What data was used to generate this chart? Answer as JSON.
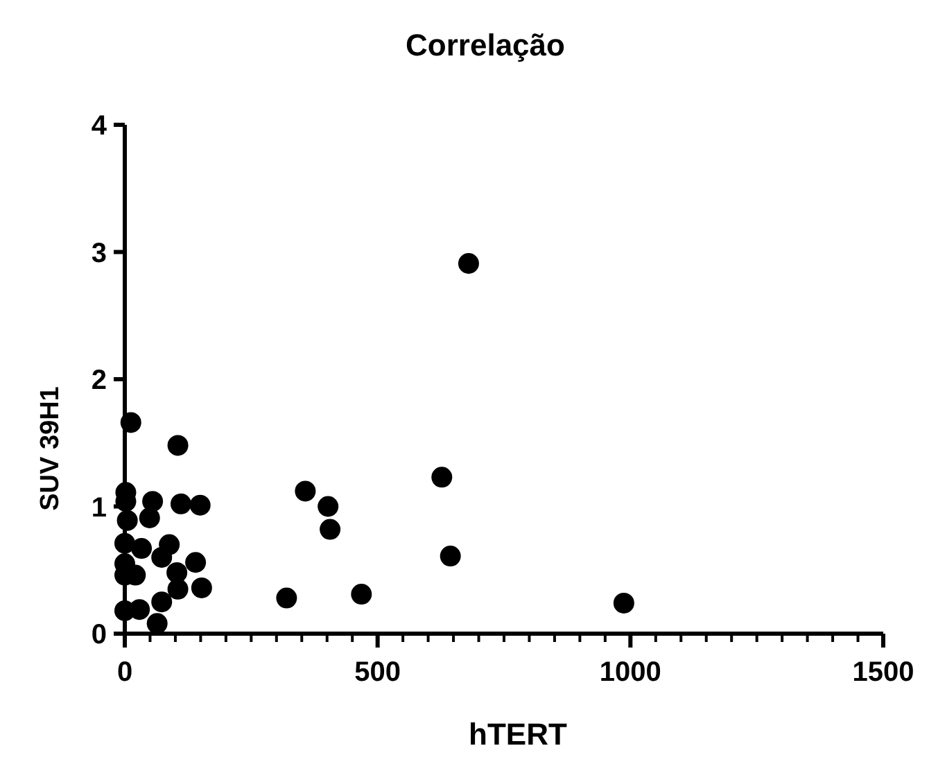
{
  "chart_data": {
    "type": "scatter",
    "title": "Correlação",
    "xlabel": "hTERT",
    "ylabel": "SUV 39H1",
    "marker": "circle",
    "grid": false,
    "xlim": [
      0,
      1500
    ],
    "ylim": [
      0,
      4
    ],
    "xticks": [
      0,
      {
        "value": 50,
        "label": null
      },
      {
        "value": 100,
        "label": null
      },
      {
        "value": 150,
        "label": null
      },
      {
        "value": 200,
        "label": null
      },
      {
        "value": 250,
        "label": null
      },
      {
        "value": 300,
        "label": null
      },
      {
        "value": 350,
        "label": null
      },
      {
        "value": 400,
        "label": null
      },
      {
        "value": 450,
        "label": null
      },
      500,
      {
        "value": 550,
        "label": null
      },
      {
        "value": 600,
        "label": null
      },
      {
        "value": 650,
        "label": null
      },
      {
        "value": 700,
        "label": null
      },
      {
        "value": 750,
        "label": null
      },
      {
        "value": 800,
        "label": null
      },
      {
        "value": 850,
        "label": null
      },
      {
        "value": 900,
        "label": null
      },
      {
        "value": 950,
        "label": null
      },
      1000,
      {
        "value": 1050,
        "label": null
      },
      {
        "value": 1100,
        "label": null
      },
      {
        "value": 1150,
        "label": null
      },
      {
        "value": 1200,
        "label": null
      },
      {
        "value": 1250,
        "label": null
      },
      {
        "value": 1300,
        "label": null
      },
      {
        "value": 1350,
        "label": null
      },
      {
        "value": 1400,
        "label": null
      },
      {
        "value": 1450,
        "label": null
      },
      1500
    ],
    "yticks": [
      0,
      1,
      2,
      3,
      4
    ],
    "series": [
      {
        "color": "#000000",
        "x": [
          12,
          105,
          680,
          627,
          357,
          402,
          406,
          644,
          320,
          468,
          987,
          2,
          2,
          5,
          55,
          49,
          111,
          149,
          0,
          33,
          88,
          73,
          140,
          0,
          0,
          103,
          152,
          105,
          73,
          0,
          29,
          64,
          21
        ],
        "values": [
          1.66,
          1.48,
          2.91,
          1.23,
          1.12,
          1.0,
          0.82,
          0.61,
          0.28,
          0.31,
          0.24,
          1.11,
          1.04,
          0.89,
          1.04,
          0.91,
          1.02,
          1.01,
          0.71,
          0.67,
          0.7,
          0.6,
          0.56,
          0.55,
          0.46,
          0.48,
          0.36,
          0.35,
          0.25,
          0.18,
          0.19,
          0.08,
          0.46
        ]
      }
    ]
  }
}
